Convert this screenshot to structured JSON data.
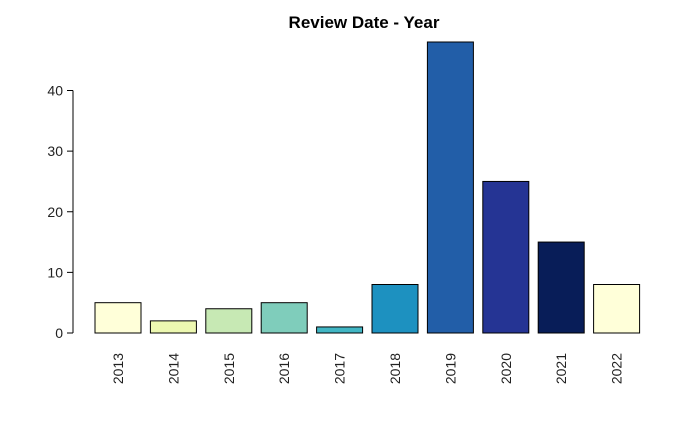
{
  "chart_data": {
    "type": "bar",
    "title": "Review Date - Year",
    "xlabel": "",
    "ylabel": "",
    "categories": [
      "2013",
      "2014",
      "2015",
      "2016",
      "2017",
      "2018",
      "2019",
      "2020",
      "2021",
      "2022"
    ],
    "values": [
      5,
      2,
      4,
      5,
      1,
      8,
      48,
      25,
      15,
      8
    ],
    "colors": [
      "#FFFFD9",
      "#EDF8B1",
      "#C7E9B4",
      "#7FCDBB",
      "#41B6C4",
      "#1D91C0",
      "#225EA8",
      "#253494",
      "#081D58",
      "#FFFFD9"
    ],
    "ylim": [
      0,
      48
    ],
    "yticks": [
      0,
      10,
      20,
      30,
      40
    ],
    "grid": false,
    "legend": "none"
  }
}
